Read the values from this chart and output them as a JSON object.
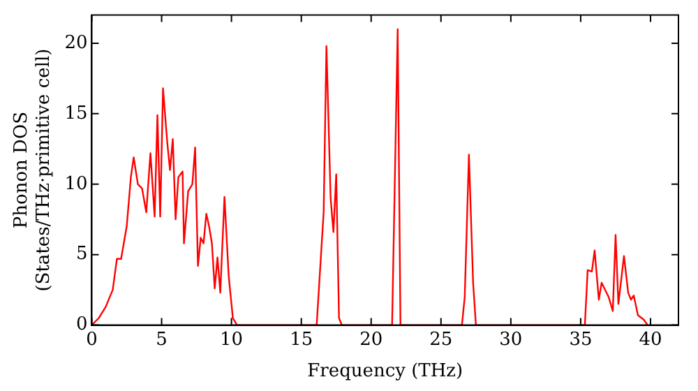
{
  "chart_data": {
    "type": "line",
    "xlabel": "Frequency (THz)",
    "ylabel": "Phonon DOS\n(States/THz·primitive cell)",
    "x": [
      0,
      0.5,
      1,
      1.5,
      1.8,
      2.1,
      2.5,
      2.8,
      3,
      3.3,
      3.6,
      3.9,
      4.2,
      4.5,
      4.7,
      4.9,
      5.1,
      5.4,
      5.6,
      5.8,
      6.0,
      6.2,
      6.5,
      6.6,
      6.9,
      7.2,
      7.4,
      7.6,
      7.8,
      8.0,
      8.2,
      8.4,
      8.6,
      8.8,
      9.0,
      9.2,
      9.5,
      9.8,
      10.1,
      10.4,
      16.1,
      16.6,
      16.8,
      17.1,
      17.3,
      17.5,
      17.7,
      17.9,
      21.5,
      21.9,
      22.1,
      26.5,
      26.7,
      27.0,
      27.3,
      27.5,
      35.3,
      35.5,
      35.8,
      36.0,
      36.3,
      36.5,
      37.0,
      37.3,
      37.5,
      37.7,
      38.1,
      38.4,
      38.6,
      38.8,
      39.1,
      39.5,
      39.8
    ],
    "series": [
      {
        "color": "#ff0000",
        "values": [
          0,
          0.5,
          1.3,
          2.5,
          4.7,
          4.7,
          7,
          10.5,
          11.9,
          10,
          9.7,
          8,
          12.2,
          7.7,
          14.9,
          7.7,
          16.8,
          13,
          11,
          13.2,
          7.5,
          10.5,
          10.9,
          5.8,
          9.5,
          10,
          12.6,
          4.2,
          6.2,
          5.8,
          7.9,
          7,
          5.8,
          2.6,
          4.8,
          2.3,
          9.1,
          3.5,
          0.5,
          0,
          0,
          8,
          19.8,
          9,
          6.6,
          10.7,
          0.5,
          0,
          0,
          21,
          0,
          0,
          2,
          12.1,
          3,
          0,
          0,
          3.9,
          3.8,
          5.3,
          1.8,
          3,
          2,
          1,
          6.4,
          1.5,
          4.9,
          2.3,
          1.8,
          2.1,
          0.7,
          0.4,
          0
        ]
      }
    ],
    "xlim": [
      0,
      42
    ],
    "ylim": [
      0,
      22
    ],
    "xticks": [
      0,
      5,
      10,
      15,
      20,
      25,
      30,
      35,
      40
    ],
    "yticks": [
      0,
      5,
      10,
      15,
      20
    ],
    "grid": false,
    "legend": false,
    "marker": "none",
    "line_style": "solid"
  }
}
